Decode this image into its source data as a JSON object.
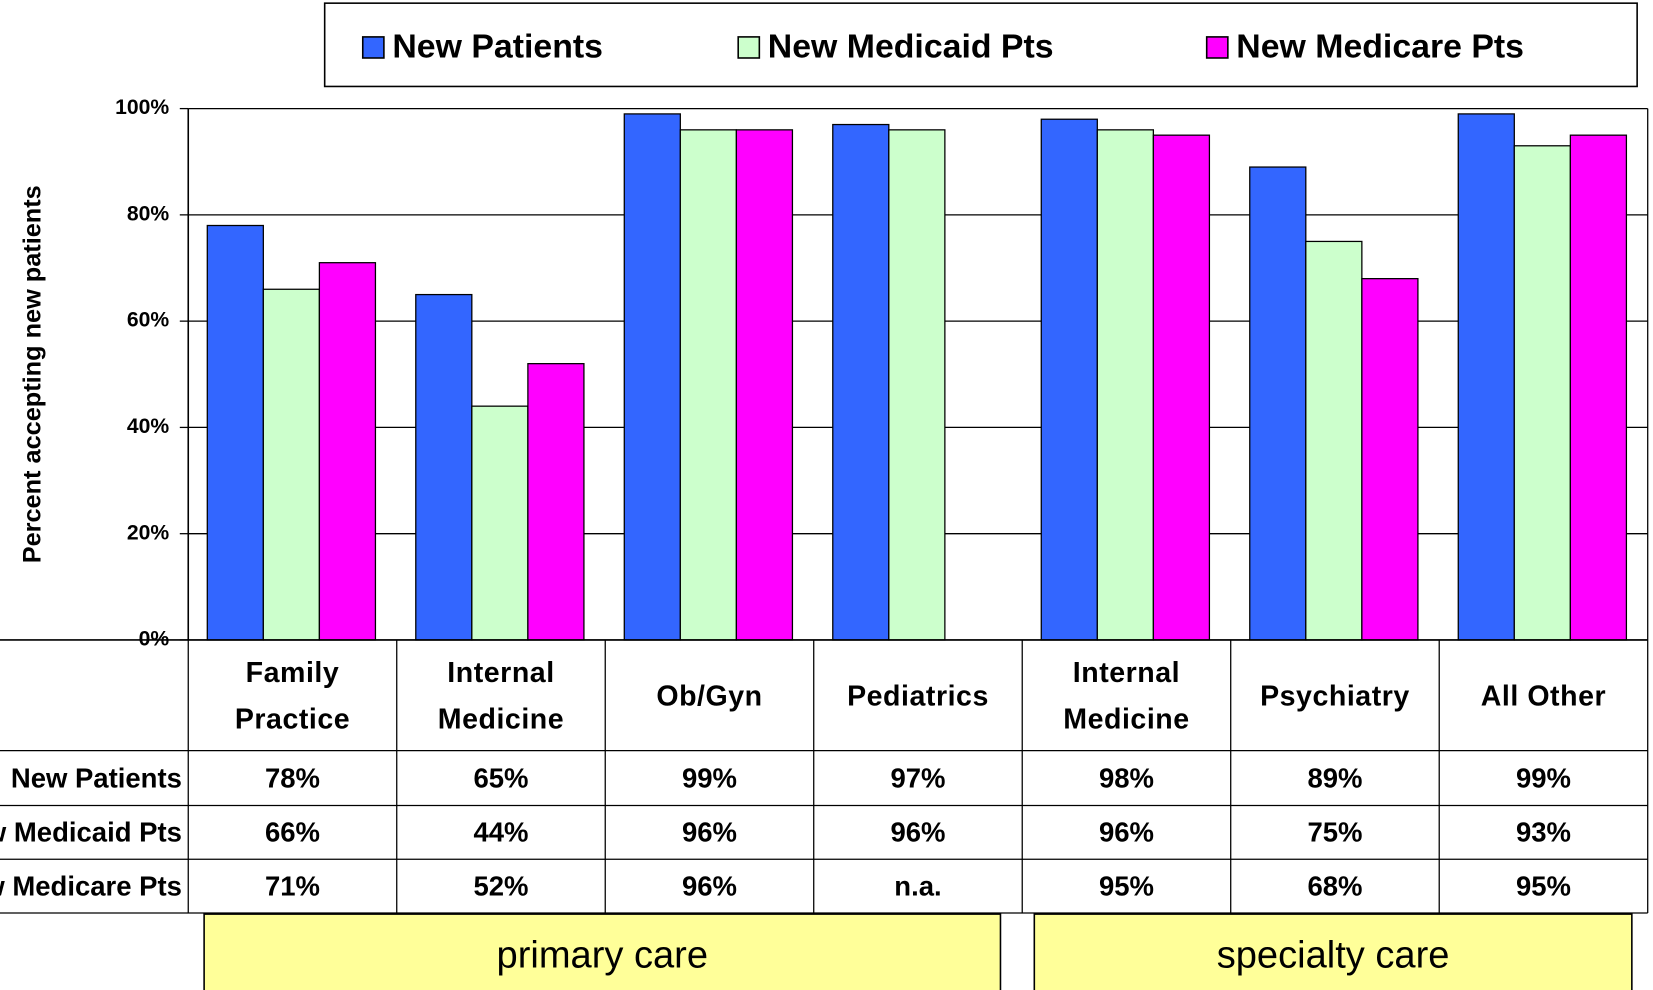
{
  "chart_data": {
    "type": "bar",
    "ylabel": "Percent accepting new patients",
    "categories": [
      "Family Practice",
      "Internal Medicine",
      "Ob/Gyn",
      "Pediatrics",
      "Internal Medicine",
      "Psychiatry",
      "All Other"
    ],
    "series": [
      {
        "name": "New Patients",
        "color": "#3366ff",
        "values": [
          78,
          65,
          99,
          97,
          98,
          89,
          99
        ],
        "value_labels": [
          "78%",
          "65%",
          "99%",
          "97%",
          "98%",
          "89%",
          "99%"
        ]
      },
      {
        "name": "New Medicaid Pts",
        "color": "#ccffcc",
        "values": [
          66,
          44,
          96,
          96,
          96,
          75,
          93
        ],
        "value_labels": [
          "66%",
          "44%",
          "96%",
          "96%",
          "96%",
          "75%",
          "93%"
        ]
      },
      {
        "name": "New Medicare Pts",
        "color": "#ff00ff",
        "values": [
          71,
          52,
          96,
          null,
          95,
          68,
          95
        ],
        "value_labels": [
          "71%",
          "52%",
          "96%",
          "n.a.",
          "95%",
          "68%",
          "95%"
        ]
      }
    ],
    "ylim": [
      0,
      100
    ],
    "yticks": [
      {
        "value": 0,
        "label": "0%"
      },
      {
        "value": 20,
        "label": "20%"
      },
      {
        "value": 40,
        "label": "40%"
      },
      {
        "value": 60,
        "label": "60%"
      },
      {
        "value": 80,
        "label": "80%"
      },
      {
        "value": 100,
        "label": "100%"
      }
    ],
    "grid": true,
    "groups": [
      {
        "label": "primary care"
      },
      {
        "label": "specialty care"
      }
    ]
  }
}
